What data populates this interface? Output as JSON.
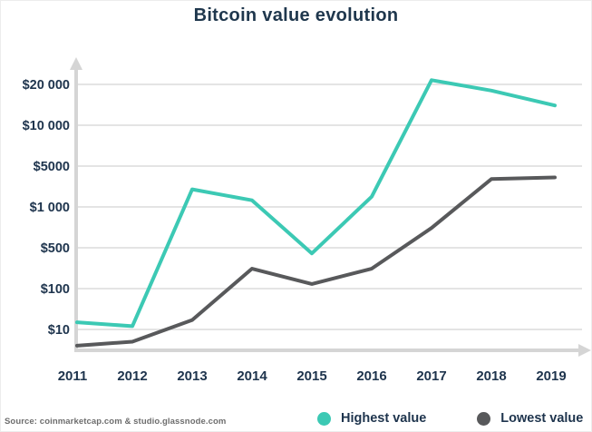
{
  "title": "Bitcoin value evolution",
  "source_note": "Source: coinmarketcap.com & studio.glassnode.com",
  "colors": {
    "background": "#ffffff",
    "title_text": "#1f374d",
    "axis_text": "#1e344d",
    "grid_line": "#dcdcdc",
    "axis_line": "#d5d5d5",
    "highest_line": "#3cc9b4",
    "lowest_line": "#58595b",
    "source_text": "#6d6d6d"
  },
  "legend": {
    "items": [
      {
        "label": "Highest value",
        "color": "#3cc9b4"
      },
      {
        "label": "Lowest value",
        "color": "#58595b"
      }
    ]
  },
  "chart_data": {
    "type": "line",
    "title": "Bitcoin value evolution",
    "xlabel": "",
    "ylabel": "",
    "grid": true,
    "legend_position": "bottom-right",
    "x_tick_labels": [
      "2011",
      "2012",
      "2013",
      "2014",
      "2015",
      "2016",
      "2017",
      "2018",
      "2019"
    ],
    "y_axis": {
      "unit": "USD",
      "scale": "piecewise-log",
      "tick_labels": [
        "$20 000",
        "$10 000",
        "$5000",
        "$1 000",
        "$500",
        "$100",
        "$10"
      ],
      "tick_values": [
        20000,
        10000,
        5000,
        1000,
        500,
        100,
        10
      ]
    },
    "series": [
      {
        "name": "Highest value",
        "color": "#3cc9b4",
        "values": [
          15,
          12,
          2000,
          1300,
          400,
          1500,
          21500,
          18000,
          14000
        ]
      },
      {
        "name": "Lowest value",
        "color": "#58595b",
        "values": [
          4,
          5,
          17,
          220,
          120,
          220,
          700,
          3000,
          3200
        ]
      }
    ]
  }
}
